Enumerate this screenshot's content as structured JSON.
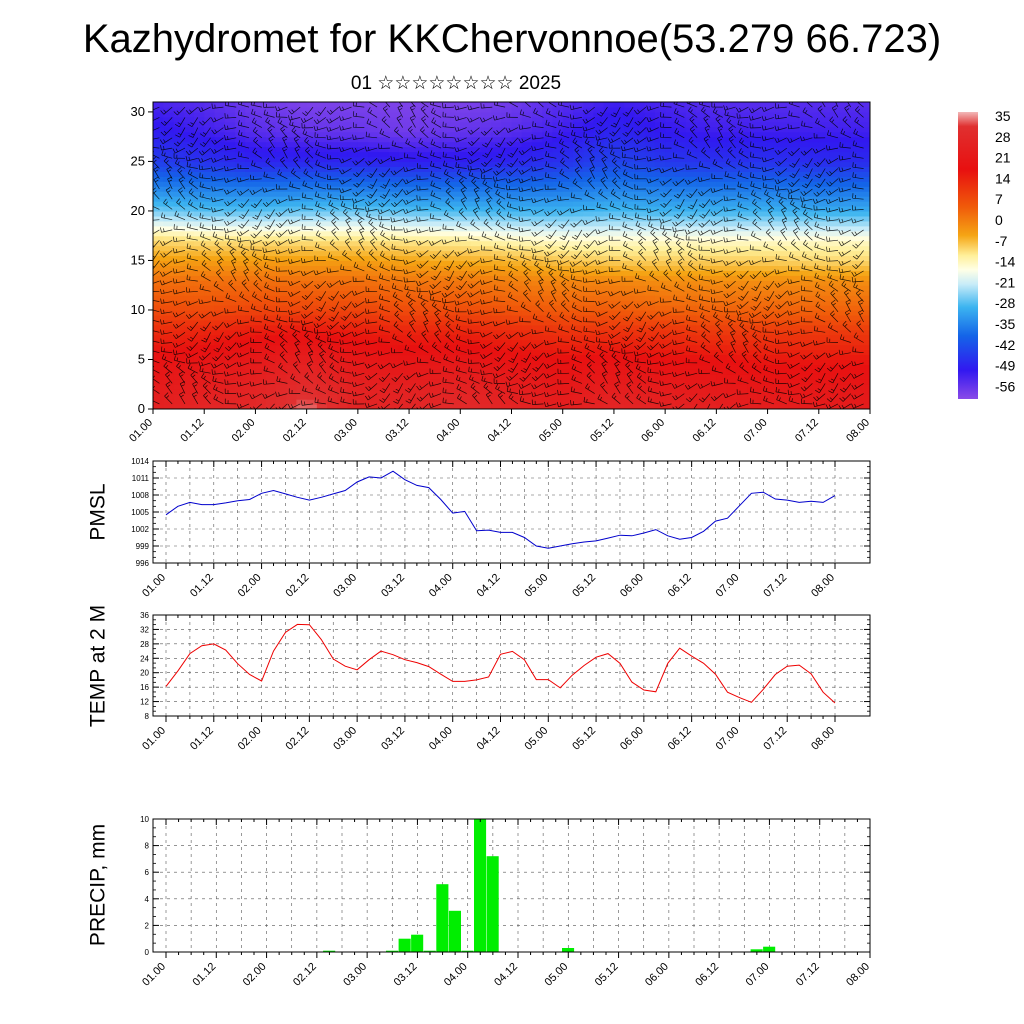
{
  "title": "Kazhydromet for KKChervonnoe(53.279 66.723)",
  "date_label": "01 ☆☆☆☆☆☆☆☆ 2025",
  "colors": {
    "pmsl_line": "#0000cc",
    "temp_line": "#ee0000",
    "precip_bar": "#00ee00",
    "wind_barb": "#000000"
  },
  "chart_data": [
    {
      "id": "cross-section",
      "type": "heatmap",
      "title": "",
      "xlabel": "",
      "ylabel": "",
      "x_ticks": [
        "01.00",
        "01.12",
        "02.00",
        "02.12",
        "03.00",
        "03.12",
        "04.00",
        "04.12",
        "05.00",
        "05.12",
        "06.00",
        "06.12",
        "07.00",
        "07.12",
        "08.00"
      ],
      "y_ticks": [
        0,
        5,
        10,
        15,
        20,
        25,
        30
      ],
      "ylim": [
        0,
        31
      ],
      "overlay": "wind barbs",
      "colorbar": {
        "labels": [
          "35",
          "28",
          "21",
          "14",
          "7",
          "0",
          "-7",
          "-14",
          "-21",
          "-28",
          "-35",
          "-42",
          "-49",
          "-56"
        ],
        "range": [
          -59,
          38
        ]
      },
      "levels": [
        0,
        2,
        5,
        8,
        10,
        13,
        15,
        17,
        20,
        23,
        25,
        28,
        31
      ],
      "level_values": [
        [
          27,
          29,
          30,
          36,
          28,
          29,
          31,
          28,
          26,
          29,
          28,
          27,
          26,
          25,
          25
        ],
        [
          25,
          26,
          28,
          32,
          27,
          27,
          28,
          26,
          24,
          26,
          25,
          24,
          23,
          23,
          23
        ],
        [
          21,
          22,
          24,
          26,
          23,
          22,
          23,
          21,
          20,
          21,
          20,
          20,
          19,
          19,
          19
        ],
        [
          16,
          17,
          18,
          19,
          18,
          17,
          17,
          16,
          15,
          15,
          15,
          14,
          14,
          14,
          14
        ],
        [
          12,
          12,
          13,
          13,
          13,
          12,
          12,
          11,
          10,
          10,
          9,
          9,
          9,
          9,
          9
        ],
        [
          7,
          7,
          7,
          7,
          7,
          6,
          6,
          5,
          4,
          4,
          3,
          3,
          3,
          3,
          3
        ],
        [
          1,
          1,
          1,
          1,
          1,
          0,
          -1,
          -2,
          -4,
          -5,
          -5,
          -5,
          -5,
          -6,
          -6
        ],
        [
          -6,
          -7,
          -7,
          -7,
          -7,
          -8,
          -9,
          -11,
          -12,
          -12,
          -12,
          -12,
          -12,
          -12,
          -12
        ],
        [
          -24,
          -26,
          -26,
          -25,
          -25,
          -26,
          -27,
          -28,
          -28,
          -27,
          -28,
          -28,
          -28,
          -29,
          -29
        ],
        [
          -38,
          -39,
          -40,
          -40,
          -40,
          -41,
          -41,
          -41,
          -40,
          -38,
          -39,
          -40,
          -40,
          -41,
          -41
        ],
        [
          -46,
          -48,
          -50,
          -50,
          -50,
          -51,
          -51,
          -50,
          -48,
          -45,
          -47,
          -48,
          -48,
          -49,
          -49
        ],
        [
          -51,
          -53,
          -55,
          -56,
          -56,
          -57,
          -56,
          -55,
          -53,
          -50,
          -52,
          -53,
          -53,
          -53,
          -53
        ],
        [
          -54,
          -55,
          -57,
          -58,
          -58,
          -58,
          -58,
          -57,
          -55,
          -53,
          -54,
          -55,
          -55,
          -55,
          -55
        ]
      ]
    },
    {
      "id": "pmsl",
      "type": "line",
      "title": "",
      "xlabel": "",
      "ylabel": "PMSL",
      "x_ticks": [
        "01.00",
        "01.12",
        "02.00",
        "02.12",
        "03.00",
        "03.12",
        "04.00",
        "04.12",
        "05.00",
        "05.12",
        "06.00",
        "06.12",
        "07.00",
        "07.12",
        "08.00"
      ],
      "y_ticks": [
        996,
        999,
        1002,
        1005,
        1008,
        1011,
        1014
      ],
      "ylim": [
        996,
        1014
      ],
      "x_hours": [
        0,
        3,
        6,
        9,
        12,
        15,
        18,
        21,
        24,
        27,
        30,
        33,
        36,
        39,
        42,
        45,
        48,
        51,
        54,
        57,
        60,
        63,
        66,
        69,
        72,
        75,
        78,
        81,
        84,
        87,
        90,
        93,
        96,
        99,
        102,
        105,
        108,
        111,
        114,
        117,
        120,
        123,
        126,
        129,
        132,
        135,
        138,
        141,
        144,
        147,
        150,
        153,
        156,
        159,
        162,
        165,
        168
      ],
      "values": [
        1004.5,
        1006.0,
        1006.7,
        1006.3,
        1006.3,
        1006.6,
        1007.0,
        1007.2,
        1008.3,
        1008.8,
        1008.2,
        1007.6,
        1007.1,
        1007.6,
        1008.2,
        1008.8,
        1010.3,
        1011.2,
        1011.0,
        1012.2,
        1010.7,
        1009.7,
        1009.3,
        1007.2,
        1004.8,
        1005.1,
        1001.7,
        1001.8,
        1001.4,
        1001.4,
        1000.5,
        999.0,
        998.6,
        999.0,
        999.4,
        999.7,
        999.9,
        1000.4,
        1000.9,
        1000.8,
        1001.3,
        1001.9,
        1000.8,
        1000.2,
        1000.5,
        1001.6,
        1003.4,
        1003.9,
        1006.1,
        1008.3,
        1008.5,
        1007.3,
        1007.1,
        1006.7,
        1006.9,
        1006.7,
        1007.9
      ]
    },
    {
      "id": "temp",
      "type": "line",
      "title": "",
      "xlabel": "",
      "ylabel": "TEMP at 2 M",
      "x_ticks": [
        "01.00",
        "01.12",
        "02.00",
        "02.12",
        "03.00",
        "03.12",
        "04.00",
        "04.12",
        "05.00",
        "05.12",
        "06.00",
        "06.12",
        "07.00",
        "07.12",
        "08.00"
      ],
      "y_ticks": [
        8,
        12,
        16,
        20,
        24,
        28,
        32,
        36
      ],
      "ylim": [
        8,
        36
      ],
      "x_hours": [
        0,
        3,
        6,
        9,
        12,
        15,
        18,
        21,
        24,
        27,
        30,
        33,
        36,
        39,
        42,
        45,
        48,
        51,
        54,
        57,
        60,
        63,
        66,
        69,
        72,
        75,
        78,
        81,
        84,
        87,
        90,
        93,
        96,
        99,
        102,
        105,
        108,
        111,
        114,
        117,
        120,
        123,
        126,
        129,
        132,
        135,
        138,
        141,
        144,
        147,
        150,
        153,
        156,
        159,
        162,
        165,
        168
      ],
      "values": [
        16.2,
        20.5,
        25.3,
        27.5,
        28.0,
        26.3,
        22.5,
        19.5,
        17.7,
        26.0,
        31.2,
        33.4,
        33.3,
        29.2,
        23.8,
        21.8,
        20.8,
        23.6,
        26.0,
        25.0,
        23.6,
        22.8,
        21.7,
        19.6,
        17.6,
        17.6,
        18.0,
        18.8,
        25.1,
        25.9,
        23.6,
        18.1,
        18.1,
        15.8,
        19.3,
        22.0,
        24.3,
        25.3,
        22.6,
        17.4,
        15.2,
        14.7,
        22.6,
        26.8,
        24.6,
        22.6,
        19.6,
        14.6,
        13.1,
        11.8,
        15.4,
        19.5,
        21.8,
        22.1,
        19.7,
        14.6,
        11.6
      ]
    },
    {
      "id": "precip",
      "type": "bar",
      "title": "",
      "xlabel": "",
      "ylabel": "PRECIP, mm",
      "x_ticks": [
        "01.00",
        "01.12",
        "02.00",
        "02.12",
        "03.00",
        "03.12",
        "04.00",
        "04.12",
        "05.00",
        "05.12",
        "06.00",
        "06.12",
        "07.00",
        "07.12",
        "08.00"
      ],
      "y_ticks": [
        0,
        2,
        4,
        6,
        8,
        10
      ],
      "ylim": [
        0,
        10
      ],
      "x_hours": [
        39,
        54,
        57,
        60,
        63,
        66,
        69,
        72,
        75,
        78,
        96,
        141,
        144
      ],
      "values": [
        0.1,
        0.1,
        1.0,
        1.3,
        0.1,
        5.1,
        3.1,
        0.1,
        10.0,
        7.2,
        0.3,
        0.2,
        0.4
      ]
    }
  ]
}
